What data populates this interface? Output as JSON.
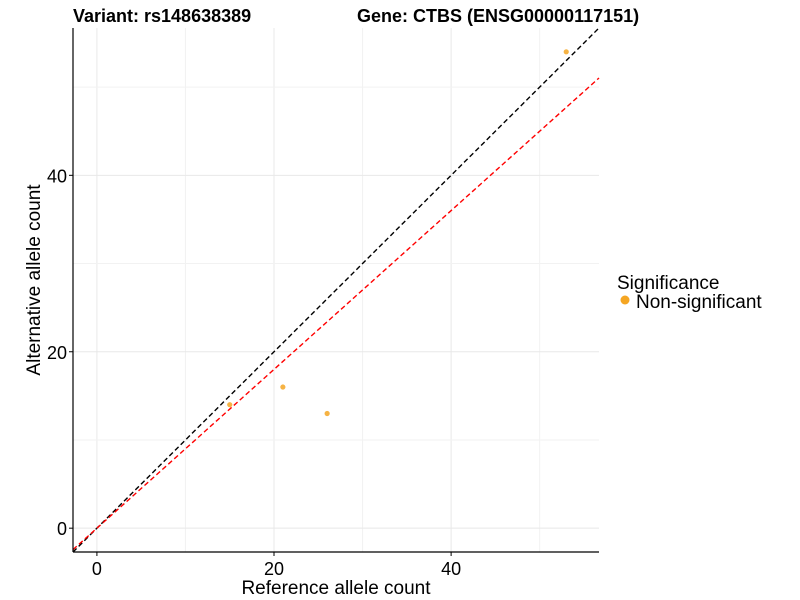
{
  "chart_data": {
    "type": "scatter",
    "title_left": "Variant: rs148638389",
    "title_right": "Gene: CTBS (ENSG00000117151)",
    "xlabel": "Reference allele count",
    "ylabel": "Alternative allele count",
    "xlim": [
      -2.7,
      56.7
    ],
    "ylim": [
      -2.7,
      56.7
    ],
    "x_ticks": [
      0,
      20,
      40
    ],
    "y_ticks": [
      0,
      20,
      40
    ],
    "grid": true,
    "points": [
      {
        "x": 15,
        "y": 14
      },
      {
        "x": 21,
        "y": 16
      },
      {
        "x": 26,
        "y": 13
      },
      {
        "x": 53,
        "y": 54
      }
    ],
    "reference_lines": [
      {
        "name": "identity",
        "slope": 1,
        "intercept": 0,
        "color": "#000000",
        "dashed": true
      },
      {
        "name": "fit",
        "slope": 0.9,
        "intercept": 0,
        "color": "#ff0000",
        "dashed": true
      }
    ],
    "point_color": "#f5a623",
    "legend": {
      "title": "Significance",
      "entries": [
        {
          "label": "Non-significant",
          "color": "#f5a623"
        }
      ],
      "position": "right"
    }
  }
}
